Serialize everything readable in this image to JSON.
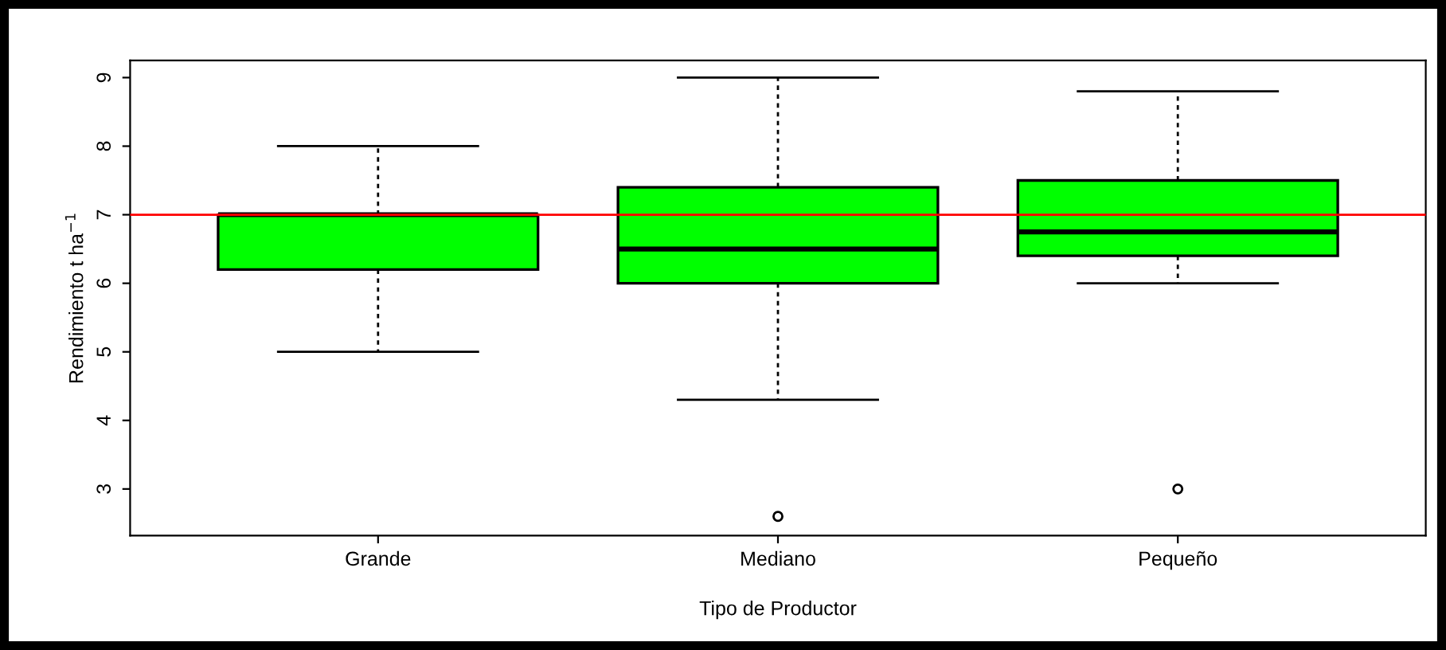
{
  "chart_data": {
    "type": "box",
    "xlabel": "Tipo de Productor",
    "ylabel": "Rendimiento t ha$^{−1}$",
    "categories": [
      "Grande",
      "Mediano",
      "Pequeño"
    ],
    "boxes": [
      {
        "low": 5.0,
        "q1": 6.2,
        "median": 7.0,
        "q3": 7.0,
        "high": 8.0
      },
      {
        "low": 4.3,
        "q1": 6.0,
        "median": 6.5,
        "q3": 7.4,
        "high": 9.0,
        "outliers": [
          2.6
        ]
      },
      {
        "low": 6.0,
        "q1": 6.4,
        "median": 6.75,
        "q3": 7.5,
        "high": 8.8,
        "outliers": [
          3.0
        ]
      }
    ],
    "color": "#00ff00",
    "ylim": [
      2.32,
      9.25
    ],
    "yticks": [
      3,
      4,
      5,
      6,
      7,
      8,
      9
    ],
    "ref_lines": [
      {
        "axis": "y",
        "value": 7,
        "color": "#ff0000"
      }
    ],
    "grid": false,
    "legend": false
  }
}
